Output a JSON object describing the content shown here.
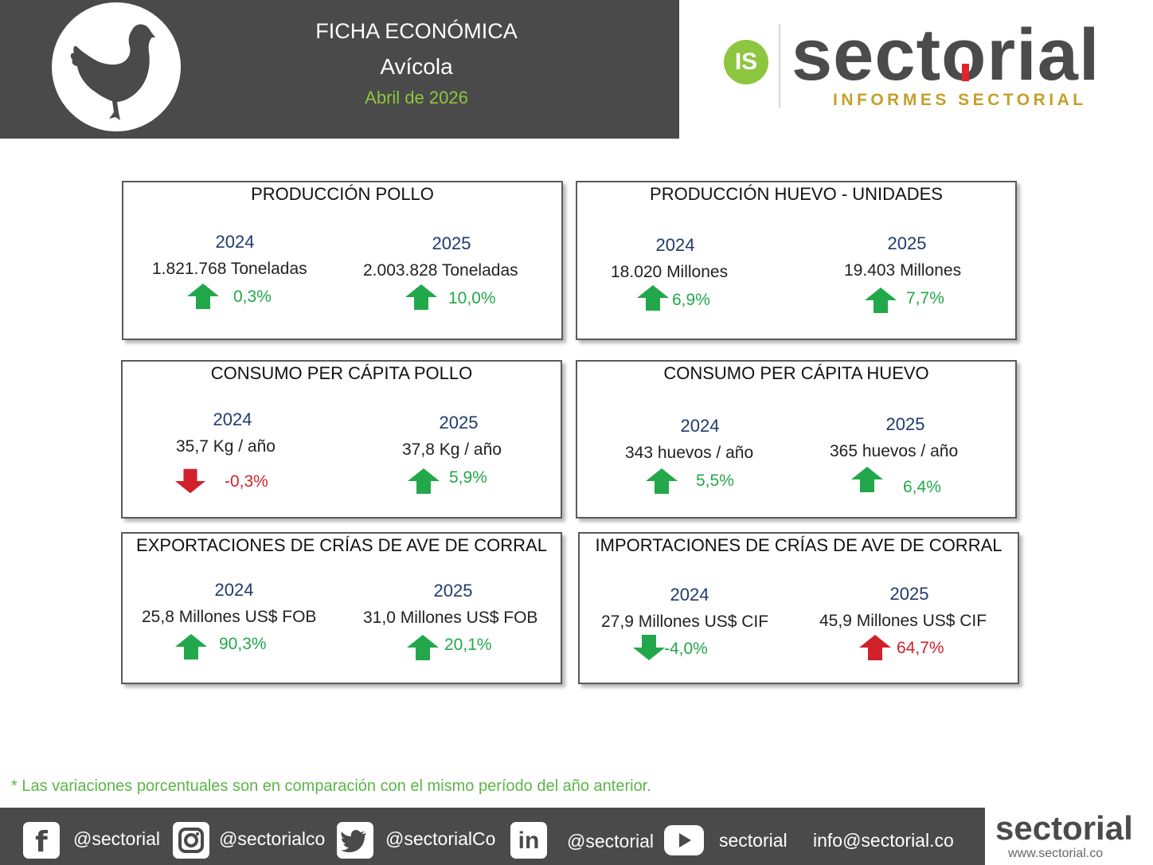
{
  "header": {
    "title": "FICHA ECONÓMICA",
    "subtitle": "Avícola",
    "date": "Abril de 2026"
  },
  "brand": {
    "badge": "IS",
    "name": "sectorial",
    "tagline": "INFORMES SECTORIAL"
  },
  "colors": {
    "header_bg": "#4a4a4a",
    "accent_green": "#8dc63f",
    "up_green": "#22a84a",
    "down_red": "#d0212a",
    "year_blue": "#1f3b6e"
  },
  "panels": [
    {
      "title": "PRODUCCIÓN POLLO",
      "left": {
        "year": "2024",
        "value": "1.821.768 Toneladas",
        "pct": "0,3%",
        "dir": "up",
        "color": "green"
      },
      "right": {
        "year": "2025",
        "value": "2.003.828 Toneladas",
        "pct": "10,0%",
        "dir": "up",
        "color": "green"
      }
    },
    {
      "title": "PRODUCCIÓN HUEVO - UNIDADES",
      "left": {
        "year": "2024",
        "value": "18.020 Millones",
        "pct": "6,9%",
        "dir": "up",
        "color": "green"
      },
      "right": {
        "year": "2025",
        "value": "19.403 Millones",
        "pct": "7,7%",
        "dir": "up",
        "color": "green"
      }
    },
    {
      "title": "CONSUMO PER CÁPITA POLLO",
      "left": {
        "year": "2024",
        "value": "35,7 Kg / año",
        "pct": "-0,3%",
        "dir": "down",
        "color": "red"
      },
      "right": {
        "year": "2025",
        "value": "37,8 Kg / año",
        "pct": "5,9%",
        "dir": "up",
        "color": "green"
      }
    },
    {
      "title": "CONSUMO PER CÁPITA HUEVO",
      "left": {
        "year": "2024",
        "value": "343 huevos / año",
        "pct": "5,5%",
        "dir": "up",
        "color": "green"
      },
      "right": {
        "year": "2025",
        "value": "365 huevos / año",
        "pct": "6,4%",
        "dir": "up",
        "color": "green"
      }
    },
    {
      "title": "EXPORTACIONES DE CRÍAS DE AVE DE CORRAL",
      "left": {
        "year": "2024",
        "value": "25,8 Millones US$ FOB",
        "pct": "90,3%",
        "dir": "up",
        "color": "green"
      },
      "right": {
        "year": "2025",
        "value": "31,0 Millones US$ FOB",
        "pct": "20,1%",
        "dir": "up",
        "color": "green"
      }
    },
    {
      "title": "IMPORTACIONES DE CRÍAS DE AVE DE CORRAL",
      "left": {
        "year": "2024",
        "value": "27,9 Millones US$ CIF",
        "pct": "-4,0%",
        "dir": "down",
        "color": "green"
      },
      "right": {
        "year": "2025",
        "value": "45,9 Millones US$ CIF",
        "pct": "64,7%",
        "dir": "up",
        "color": "red"
      }
    }
  ],
  "footnote": "* Las variaciones porcentuales son en comparación con el mismo período del año anterior.",
  "footer": {
    "facebook": "@sectorial",
    "instagram": "@sectorialco",
    "twitter": "@sectorialCo",
    "linkedin": "@sectorial",
    "youtube": "sectorial",
    "email": "info@sectorial.co",
    "logo": "sectorial",
    "url": "www.sectorial.co"
  }
}
